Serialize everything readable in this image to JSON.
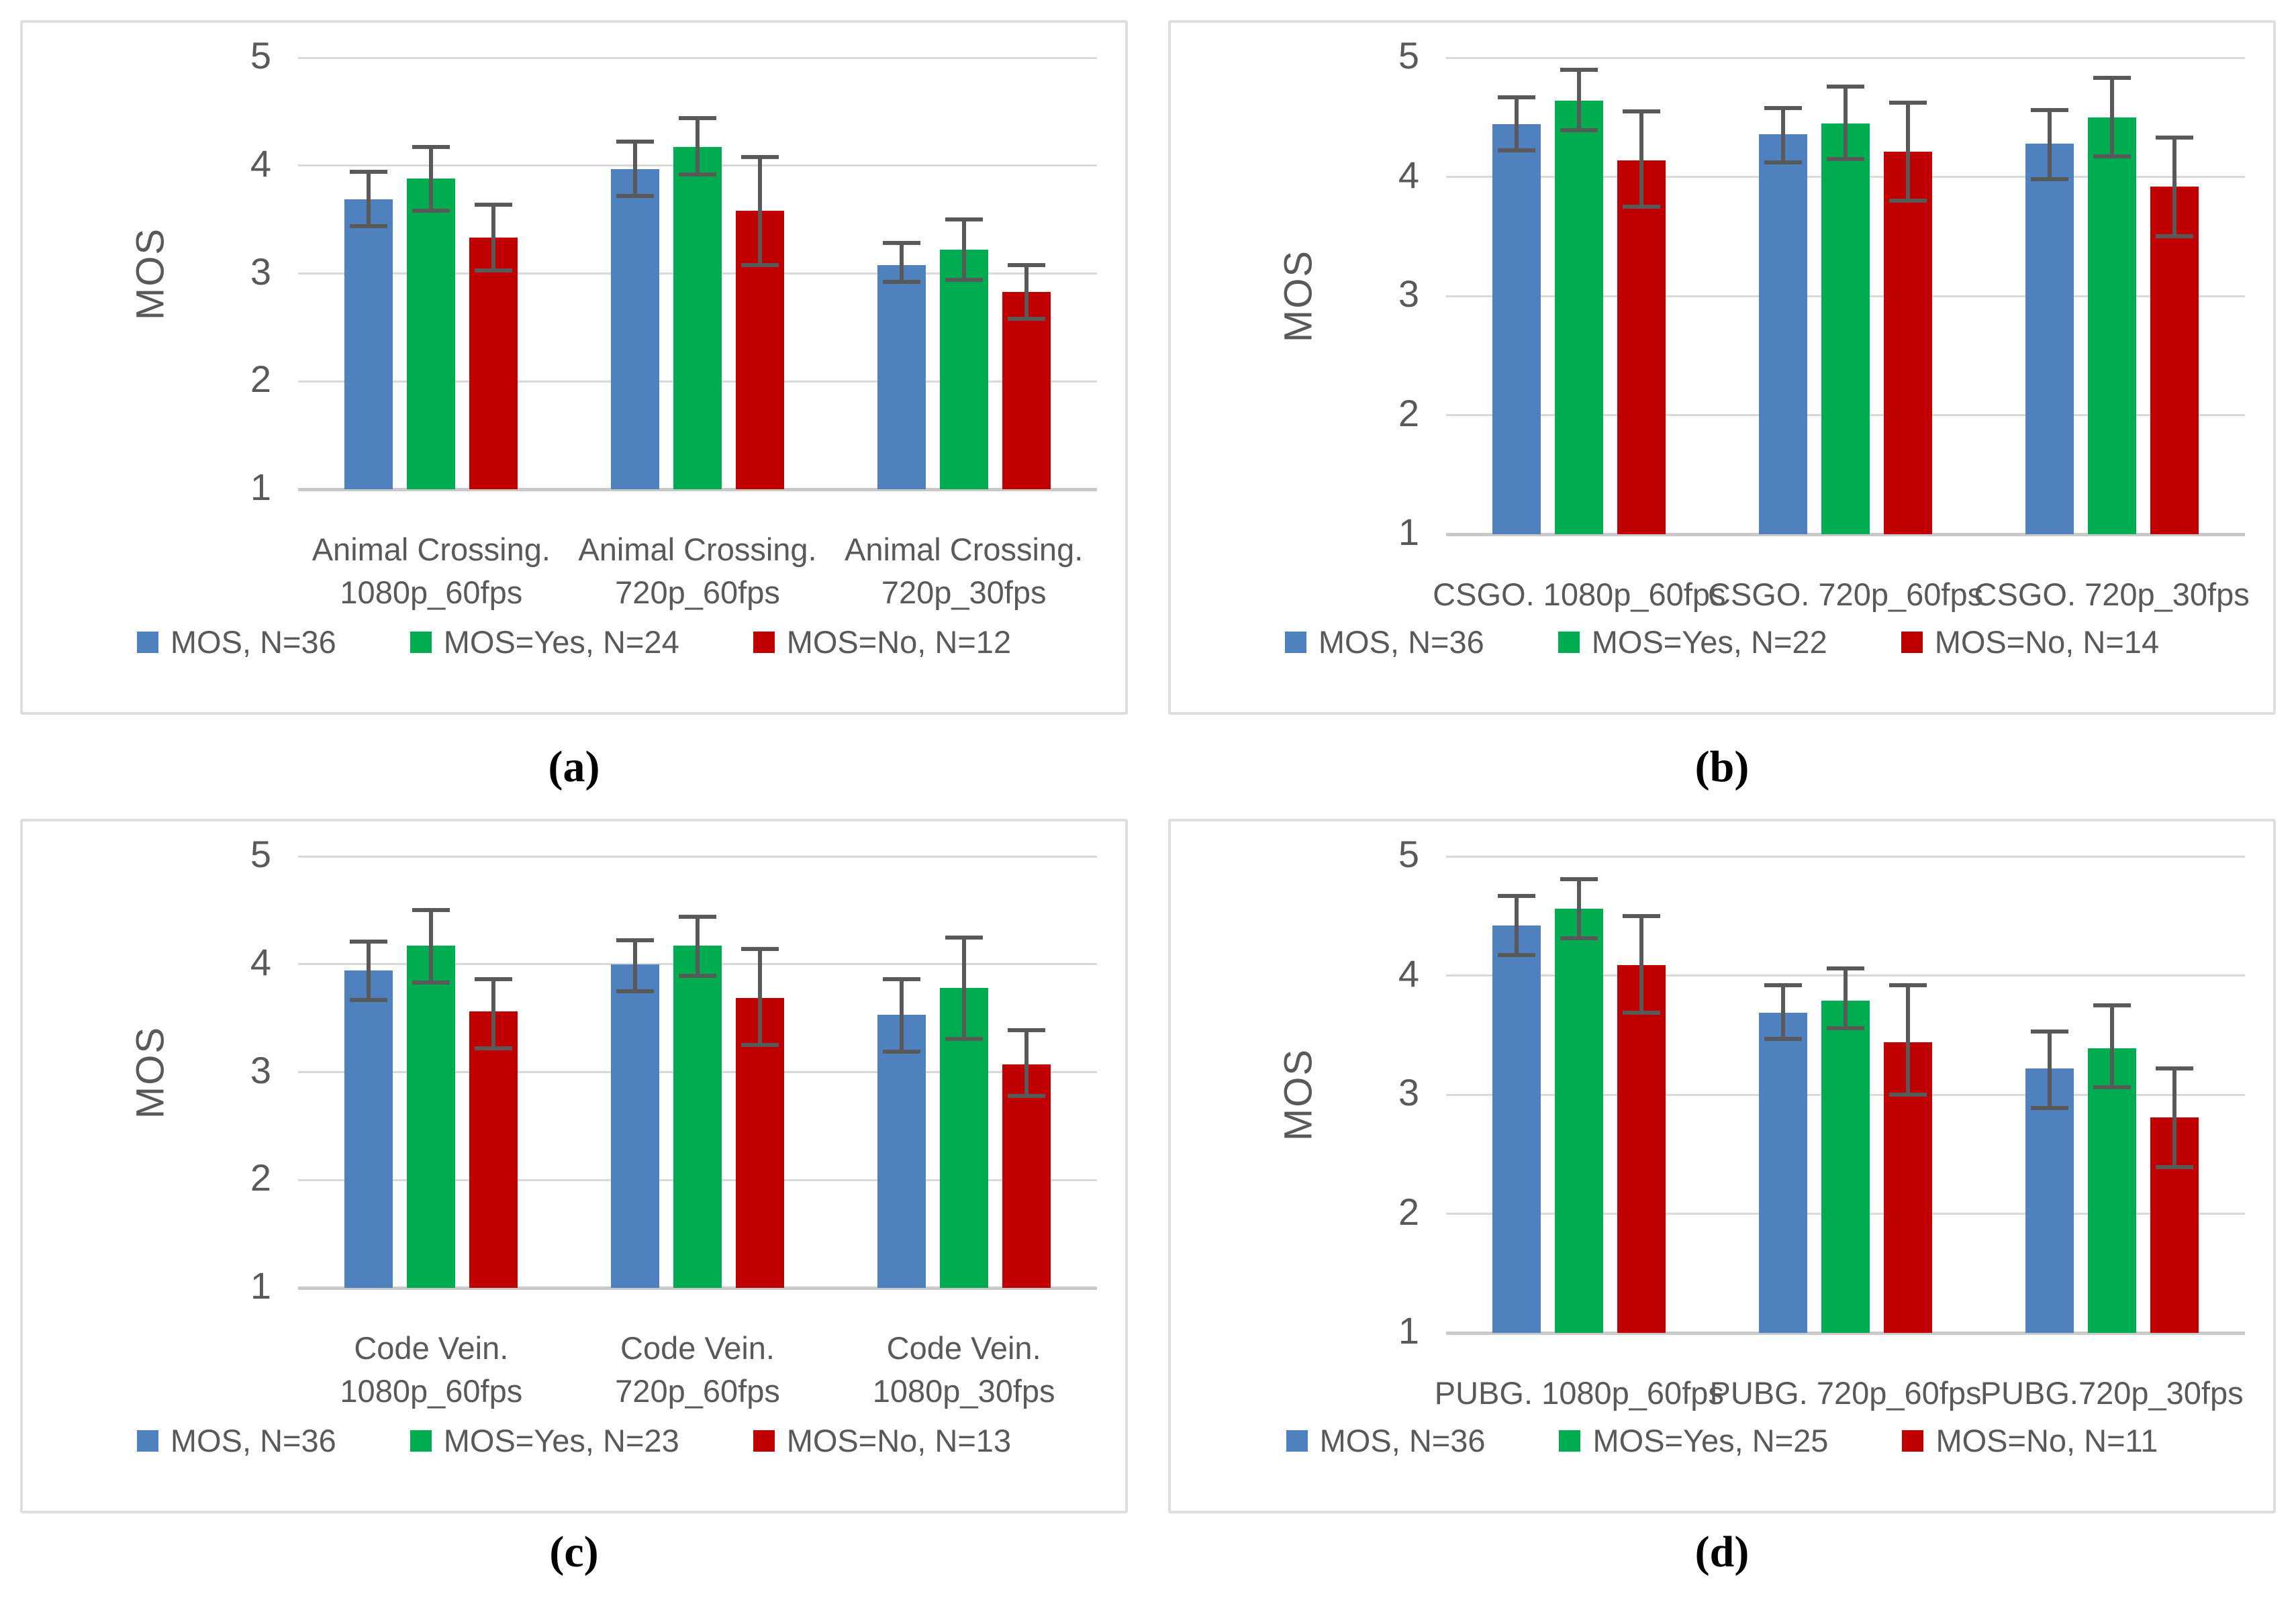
{
  "figure": {
    "ylabel": "MOS",
    "captions": [
      "(a)",
      "(b)",
      "(c)",
      "(d)"
    ]
  },
  "colors": {
    "mos_blue": "#4E81BD",
    "yes_green": "#00AC50",
    "no_red": "#C00000",
    "error_bar": "#595959",
    "gridline": "#d9d9d9",
    "baseline": "#c9c9c9",
    "axis_text": "#595959",
    "panel_border": "#dedede"
  },
  "chart_data": [
    {
      "type": "bar",
      "caption": "(a)",
      "ylabel": "MOS",
      "ylim": [
        1,
        5
      ],
      "yticks": [
        5,
        4,
        3,
        2,
        1
      ],
      "grid": true,
      "legend_position": "bottom",
      "categories": [
        [
          "Animal Crossing.",
          "1080p_60fps"
        ],
        [
          "Animal Crossing.",
          "720p_60fps"
        ],
        [
          "Animal Crossing.",
          "720p_30fps"
        ]
      ],
      "series": [
        {
          "name": "MOS, N=36",
          "color_key": "mos_blue",
          "values": [
            3.69,
            3.97,
            3.08
          ],
          "err_lower": [
            3.44,
            3.72,
            2.92
          ],
          "err_upper": [
            3.94,
            4.22,
            3.28
          ]
        },
        {
          "name": "MOS=Yes, N=24",
          "color_key": "yes_green",
          "values": [
            3.88,
            4.17,
            3.22
          ],
          "err_lower": [
            3.58,
            3.92,
            2.94
          ],
          "err_upper": [
            4.17,
            4.44,
            3.5
          ]
        },
        {
          "name": "MOS=No, N=12",
          "color_key": "no_red",
          "values": [
            3.33,
            3.58,
            2.83
          ],
          "err_lower": [
            3.03,
            3.08,
            2.58
          ],
          "err_upper": [
            3.64,
            4.08,
            3.08
          ]
        }
      ]
    },
    {
      "type": "bar",
      "caption": "(b)",
      "ylabel": "MOS",
      "ylim": [
        1,
        5
      ],
      "yticks": [
        5,
        4,
        3,
        2,
        1
      ],
      "grid": true,
      "legend_position": "bottom",
      "categories": [
        [
          "CSGO. 1080p_60fps"
        ],
        [
          "CSGO. 720p_60fps"
        ],
        [
          "CSGO. 720p_30fps"
        ]
      ],
      "series": [
        {
          "name": "MOS, N=36",
          "color_key": "mos_blue",
          "values": [
            4.44,
            4.36,
            4.28
          ],
          "err_lower": [
            4.22,
            4.12,
            3.98
          ],
          "err_upper": [
            4.67,
            4.58,
            4.56
          ]
        },
        {
          "name": "MOS=Yes, N=22",
          "color_key": "yes_green",
          "values": [
            4.64,
            4.45,
            4.5
          ],
          "err_lower": [
            4.39,
            4.15,
            4.17
          ],
          "err_upper": [
            4.9,
            4.76,
            4.83
          ]
        },
        {
          "name": "MOS=No, N=14",
          "color_key": "no_red",
          "values": [
            4.14,
            4.21,
            3.92
          ],
          "err_lower": [
            3.75,
            3.8,
            3.5
          ],
          "err_upper": [
            4.55,
            4.62,
            4.33
          ]
        }
      ]
    },
    {
      "type": "bar",
      "caption": "(c)",
      "ylabel": "MOS",
      "ylim": [
        1,
        5
      ],
      "yticks": [
        5,
        4,
        3,
        2,
        1
      ],
      "grid": true,
      "legend_position": "bottom",
      "categories": [
        [
          "Code Vein.",
          "1080p_60fps"
        ],
        [
          "Code Vein.",
          "720p_60fps"
        ],
        [
          "Code Vein.",
          "1080p_30fps"
        ]
      ],
      "series": [
        {
          "name": "MOS, N=36",
          "color_key": "mos_blue",
          "values": [
            3.94,
            4.0,
            3.53
          ],
          "err_lower": [
            3.67,
            3.75,
            3.19
          ],
          "err_upper": [
            4.21,
            4.22,
            3.86
          ]
        },
        {
          "name": "MOS=Yes, N=23",
          "color_key": "yes_green",
          "values": [
            4.17,
            4.17,
            3.78
          ],
          "err_lower": [
            3.83,
            3.89,
            3.31
          ],
          "err_upper": [
            4.5,
            4.44,
            4.25
          ]
        },
        {
          "name": "MOS=No, N=13",
          "color_key": "no_red",
          "values": [
            3.56,
            3.69,
            3.07
          ],
          "err_lower": [
            3.22,
            3.25,
            2.78
          ],
          "err_upper": [
            3.86,
            4.14,
            3.39
          ]
        }
      ]
    },
    {
      "type": "bar",
      "caption": "(d)",
      "ylabel": "MOS",
      "ylim": [
        1,
        5
      ],
      "yticks": [
        5,
        4,
        3,
        2,
        1
      ],
      "grid": true,
      "legend_position": "bottom",
      "categories": [
        [
          "PUBG. 1080p_60fps"
        ],
        [
          "PUBG. 720p_60fps"
        ],
        [
          "PUBG.720p_30fps"
        ]
      ],
      "series": [
        {
          "name": "MOS, N=36",
          "color_key": "mos_blue",
          "values": [
            4.42,
            3.69,
            3.22
          ],
          "err_lower": [
            4.17,
            3.47,
            2.89
          ],
          "err_upper": [
            4.67,
            3.92,
            3.53
          ]
        },
        {
          "name": "MOS=Yes, N=25",
          "color_key": "yes_green",
          "values": [
            4.56,
            3.79,
            3.39
          ],
          "err_lower": [
            4.31,
            3.56,
            3.06
          ],
          "err_upper": [
            4.81,
            4.06,
            3.75
          ]
        },
        {
          "name": "MOS=No, N=11",
          "color_key": "no_red",
          "values": [
            4.09,
            3.44,
            2.81
          ],
          "err_lower": [
            3.69,
            3.0,
            2.39
          ],
          "err_upper": [
            4.5,
            3.92,
            3.22
          ]
        }
      ]
    }
  ]
}
